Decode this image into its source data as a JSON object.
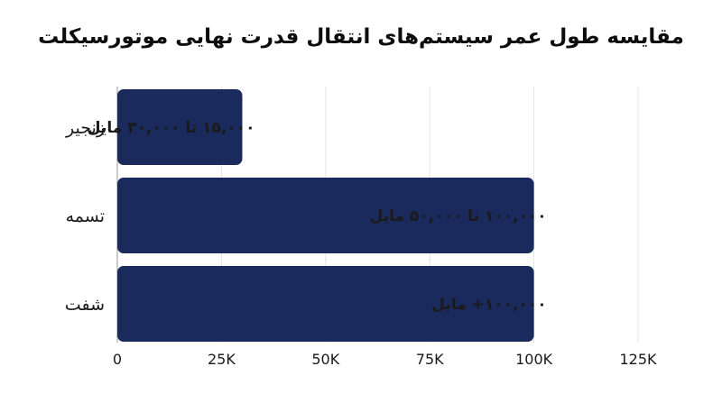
{
  "chart_data": {
    "type": "bar",
    "orientation": "horizontal",
    "title": "مقایسه طول عمر سیستم‌های انتقال قدرت نهایی موتورسیکلت",
    "categories": [
      "زنجیر",
      "تسمه",
      "شفت"
    ],
    "values": [
      30000,
      100000,
      100000
    ],
    "data_labels": [
      "۱۵,۰۰۰ تا ۳۰,۰۰۰ مایل",
      "۱۰۰,۰۰۰ تا ۵۰,۰۰۰ مایل",
      "۱۰۰,۰۰۰+ مایل"
    ],
    "xlim": [
      0,
      125000
    ],
    "x_ticks": [
      0,
      25000,
      50000,
      75000,
      100000,
      125000
    ],
    "x_tick_labels": [
      "0",
      "25K",
      "50K",
      "75K",
      "100K",
      "125K"
    ],
    "xlabel": "",
    "ylabel": "",
    "grid": true,
    "bar_color": "#1b2a5c",
    "legend": "none"
  }
}
